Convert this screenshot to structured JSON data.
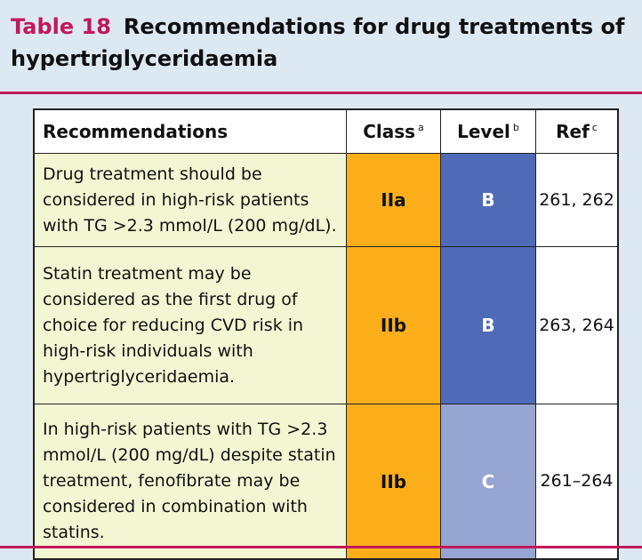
{
  "title": {
    "number": "Table 18",
    "text": "Recommendations for drug treatments of hypertriglyceridaemia"
  },
  "table": {
    "headers": {
      "recommendations": "Recommendations",
      "class": "Class",
      "class_note": "a",
      "level": "Level",
      "level_note": "b",
      "ref": "Ref",
      "ref_note": "c"
    },
    "rows": [
      {
        "recommendation": "Drug treatment should be considered in high-risk patients with TG >2.3 mmol/L (200 mg/dL).",
        "class": "IIa",
        "level": "B",
        "ref": "261, 262"
      },
      {
        "recommendation": "Statin treatment may be considered as the first drug of choice for reducing CVD risk in high-risk individuals with hypertriglyceridaemia.",
        "class": "IIb",
        "level": "B",
        "ref": "263, 264"
      },
      {
        "recommendation": "In high-risk patients with TG >2.3 mmol/L (200 mg/dL) despite statin treatment, fenofibrate may be considered in combination with statins.",
        "class": "IIb",
        "level": "C",
        "ref": "261–264"
      }
    ]
  },
  "colors": {
    "title_accent": "#c2185b",
    "class_fill": "#fbae1a",
    "level_b_fill": "#4f6bb8",
    "level_c_fill": "#97a5d2",
    "recommendation_fill": "#f3f6d2",
    "page_background": "#dde9f2"
  }
}
